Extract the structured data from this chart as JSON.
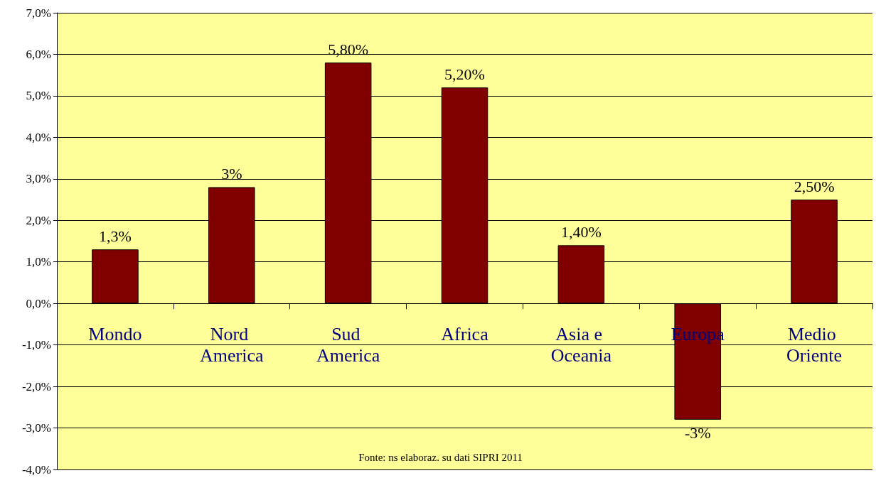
{
  "chart_data": {
    "type": "bar",
    "categories": [
      "Mondo",
      "Nord America",
      "Sud America",
      "Africa",
      "Asia e Oceania",
      "Europa",
      "Medio Oriente"
    ],
    "values": [
      1.3,
      2.8,
      5.8,
      5.2,
      1.4,
      -2.8,
      2.5
    ],
    "value_labels": [
      "1,3%",
      "3%",
      "5,80%",
      "5,20%",
      "1,40%",
      "-3%",
      "2,50%"
    ],
    "color": "#800000",
    "ylim": [
      -4,
      7
    ],
    "yticks": [
      {
        "value": -4,
        "label": "-4,0%"
      },
      {
        "value": -3,
        "label": "-3,0%"
      },
      {
        "value": -2,
        "label": "-2,0%"
      },
      {
        "value": -1,
        "label": "-1,0%"
      },
      {
        "value": 0,
        "label": "0,0%"
      },
      {
        "value": 1,
        "label": "1,0%"
      },
      {
        "value": 2,
        "label": "2,0%"
      },
      {
        "value": 3,
        "label": "3,0%"
      },
      {
        "value": 4,
        "label": "4,0%"
      },
      {
        "value": 5,
        "label": "5,0%"
      },
      {
        "value": 6,
        "label": "6,0%"
      },
      {
        "value": 7,
        "label": "7,0%"
      }
    ],
    "grid": "y",
    "annotations": [
      "Fonte: ns elaboraz. su dati SIPRI 2011"
    ]
  }
}
